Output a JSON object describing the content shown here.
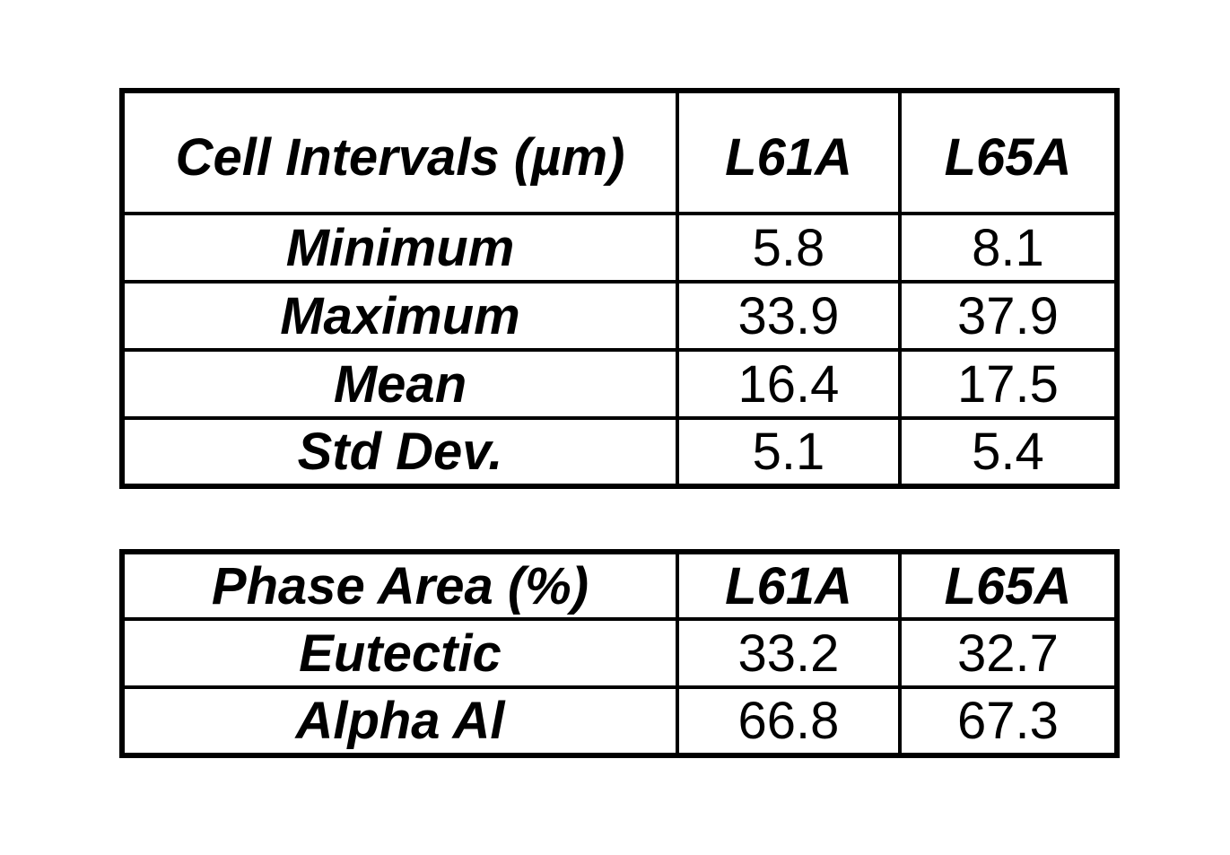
{
  "colors": {
    "background": "#ffffff",
    "border": "#000000",
    "text": "#000000"
  },
  "tables": [
    {
      "title": "Cell Intervals (µm)",
      "columns": [
        "L61A",
        "L65A"
      ],
      "rows": [
        {
          "label": "Minimum",
          "values": [
            "5.8",
            "8.1"
          ]
        },
        {
          "label": "Maximum",
          "values": [
            "33.9",
            "37.9"
          ]
        },
        {
          "label": "Mean",
          "values": [
            "16.4",
            "17.5"
          ]
        },
        {
          "label": "Std Dev.",
          "values": [
            "5.1",
            "5.4"
          ]
        }
      ]
    },
    {
      "title": "Phase Area (%)",
      "columns": [
        "L61A",
        "L65A"
      ],
      "rows": [
        {
          "label": "Eutectic",
          "values": [
            "33.2",
            "32.7"
          ]
        },
        {
          "label": "Alpha Al",
          "values": [
            "66.8",
            "67.3"
          ]
        }
      ]
    }
  ],
  "chart_data": [
    {
      "type": "table",
      "title": "Cell Intervals (µm)",
      "categories": [
        "Minimum",
        "Maximum",
        "Mean",
        "Std Dev."
      ],
      "series": [
        {
          "name": "L61A",
          "values": [
            5.8,
            33.9,
            16.4,
            5.1
          ]
        },
        {
          "name": "L65A",
          "values": [
            8.1,
            37.9,
            17.5,
            5.4
          ]
        }
      ]
    },
    {
      "type": "table",
      "title": "Phase Area (%)",
      "categories": [
        "Eutectic",
        "Alpha Al"
      ],
      "series": [
        {
          "name": "L61A",
          "values": [
            33.2,
            66.8
          ]
        },
        {
          "name": "L65A",
          "values": [
            32.7,
            67.3
          ]
        }
      ]
    }
  ]
}
